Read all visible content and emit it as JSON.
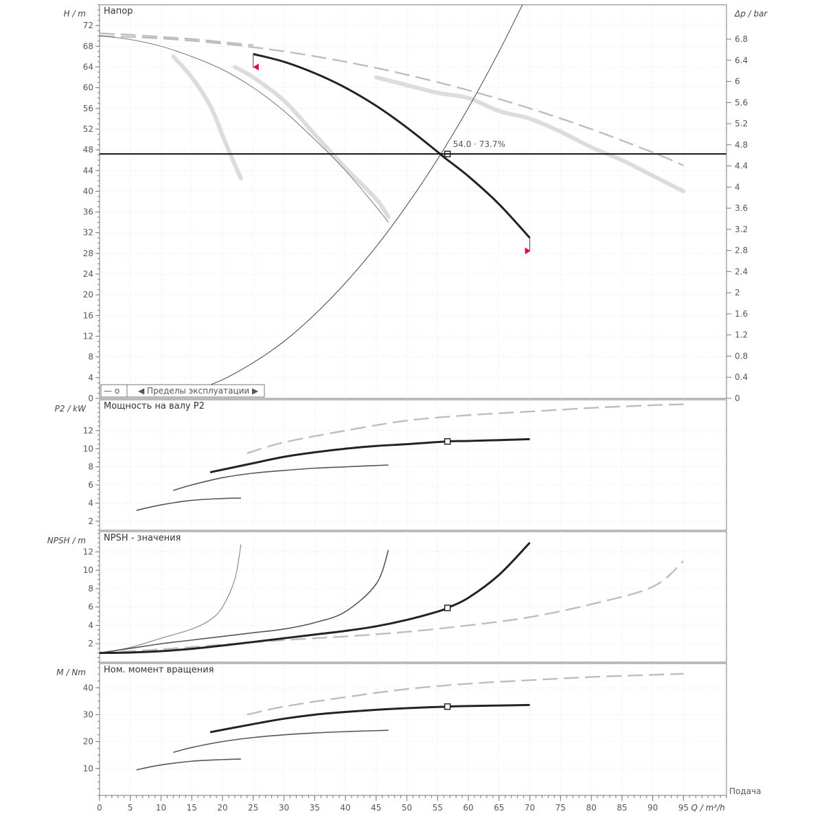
{
  "chart_data": [
    {
      "type": "line",
      "title": "Напор",
      "ylabel": "H / m",
      "y2label": "Δp / bar",
      "xlim": [
        0,
        102
      ],
      "ylim": [
        0,
        76
      ],
      "yticks": [
        0,
        4,
        8,
        12,
        16,
        20,
        24,
        28,
        32,
        36,
        40,
        44,
        48,
        52,
        56,
        60,
        64,
        68,
        72
      ],
      "y2ticks": [
        "0",
        "0.4",
        "0.8",
        "1.2",
        "1.6",
        "2",
        "2.4",
        "2.8",
        "3.2",
        "3.6",
        "4",
        "4.4",
        "4.8",
        "5.2",
        "5.6",
        "6",
        "6.4",
        "6.8"
      ],
      "y2max": 7.45,
      "grid": true,
      "series": [
        {
          "style": "main",
          "x": [
            25,
            30,
            35,
            40,
            45,
            50,
            55,
            56,
            60,
            65,
            70
          ],
          "y": [
            66.5,
            65,
            62.8,
            60,
            56.5,
            52.3,
            47.6,
            46.6,
            42.9,
            37.5,
            31
          ]
        },
        {
          "style": "dash",
          "x": [
            0,
            10,
            20,
            30,
            40,
            50,
            60,
            70,
            80,
            90,
            95
          ],
          "y": [
            70,
            69.5,
            68.5,
            67,
            65,
            62.5,
            59.5,
            56,
            52,
            47.5,
            45
          ]
        },
        {
          "style": "dash",
          "x": [
            0,
            5,
            10,
            15,
            20,
            25
          ],
          "y": [
            70.5,
            70.2,
            69.8,
            69.4,
            68.8,
            68.2
          ]
        },
        {
          "style": "thin",
          "x": [
            0,
            5,
            10,
            15,
            20,
            25,
            30,
            35,
            40,
            45,
            47
          ],
          "y": [
            70,
            69.3,
            68,
            66,
            63.5,
            60,
            55.5,
            50,
            44,
            37,
            34
          ]
        },
        {
          "style": "band",
          "x": [
            12,
            15,
            18,
            20,
            21.5,
            23
          ],
          "y": [
            66,
            62,
            56.5,
            50.8,
            46.5,
            42.5
          ]
        },
        {
          "style": "band",
          "x": [
            22,
            25,
            30,
            35,
            40,
            45,
            47
          ],
          "y": [
            64,
            62,
            57.5,
            51,
            44.5,
            38.5,
            35
          ]
        },
        {
          "style": "band",
          "x": [
            45,
            50,
            55,
            60,
            65,
            70,
            75,
            80,
            85,
            90,
            95
          ],
          "y": [
            62,
            60.5,
            59,
            58,
            55.5,
            54,
            51.5,
            48.5,
            46,
            43,
            40
          ]
        },
        {
          "style": "sys",
          "x": [
            13,
            15,
            20,
            25,
            30,
            35,
            40,
            45,
            50,
            55,
            60,
            65,
            70
          ],
          "y": [
            0.5,
            1.3,
            3.6,
            6.9,
            11,
            16.2,
            22.3,
            29.3,
            37.3,
            46.2,
            56.1,
            67,
            78.9
          ]
        }
      ],
      "operating_point": {
        "x": 56.6,
        "y": 47.2,
        "label": "54.0 · 73.7%"
      },
      "reference_line_y": 47.2,
      "legend": {
        "items": [
          "— o",
          "◀ Пределы эксплуатации ▶"
        ],
        "position": "bottom-left"
      }
    },
    {
      "type": "line",
      "title": "Мощность на валу P2",
      "ylabel": "P2 / kW",
      "xlim": [
        0,
        102
      ],
      "ylim": [
        1,
        15.4
      ],
      "yticks": [
        2,
        4,
        6,
        8,
        10,
        12
      ],
      "grid": true,
      "series": [
        {
          "style": "main",
          "x": [
            18,
            25,
            30,
            35,
            40,
            45,
            50,
            56.6,
            60,
            65,
            70
          ],
          "y": [
            7.4,
            8.4,
            9.1,
            9.6,
            10.0,
            10.3,
            10.5,
            10.8,
            10.85,
            10.95,
            11.05
          ]
        },
        {
          "style": "dash",
          "x": [
            24,
            30,
            40,
            50,
            60,
            70,
            80,
            90,
            95
          ],
          "y": [
            9.5,
            10.7,
            12.0,
            13.1,
            13.7,
            14.1,
            14.5,
            14.8,
            14.9
          ]
        },
        {
          "style": "med",
          "x": [
            12,
            15,
            20,
            25,
            30,
            35,
            40,
            47
          ],
          "y": [
            5.4,
            6.0,
            6.8,
            7.3,
            7.6,
            7.85,
            8.0,
            8.2
          ]
        },
        {
          "style": "med",
          "x": [
            6,
            10,
            15,
            20,
            23
          ],
          "y": [
            3.2,
            3.8,
            4.3,
            4.5,
            4.55
          ]
        }
      ],
      "operating_point": {
        "x": 56.6,
        "y": 10.8
      }
    },
    {
      "type": "line",
      "title": "NPSH - значения",
      "ylabel": "NPSH / m",
      "xlim": [
        0,
        102
      ],
      "ylim": [
        0,
        14.2
      ],
      "yticks": [
        2,
        4,
        6,
        8,
        10,
        12
      ],
      "grid": true,
      "series": [
        {
          "style": "main",
          "x": [
            0,
            5,
            10,
            15,
            20,
            25,
            30,
            35,
            40,
            45,
            50,
            55,
            56.6,
            60,
            65,
            70
          ],
          "y": [
            1.0,
            1.05,
            1.2,
            1.45,
            1.8,
            2.2,
            2.6,
            3.0,
            3.4,
            3.9,
            4.6,
            5.5,
            5.9,
            7.0,
            9.5,
            13.0
          ]
        },
        {
          "style": "dash",
          "x": [
            0,
            10,
            20,
            30,
            40,
            50,
            60,
            70,
            80,
            90,
            95
          ],
          "y": [
            1.0,
            1.4,
            1.9,
            2.4,
            2.8,
            3.3,
            4.0,
            4.9,
            6.3,
            8.2,
            11.0
          ]
        },
        {
          "style": "med",
          "x": [
            0,
            5,
            10,
            15,
            20,
            25,
            30,
            35,
            40,
            45,
            47
          ],
          "y": [
            1.0,
            1.5,
            2.0,
            2.4,
            2.8,
            3.2,
            3.6,
            4.3,
            5.5,
            8.5,
            12.2
          ]
        },
        {
          "style": "thin",
          "x": [
            0,
            5,
            10,
            15,
            18,
            20,
            22,
            23
          ],
          "y": [
            1.0,
            1.6,
            2.6,
            3.6,
            4.6,
            6.0,
            9.0,
            12.8
          ]
        }
      ],
      "operating_point": {
        "x": 56.6,
        "y": 5.9
      }
    },
    {
      "type": "line",
      "title": "Ном. момент вращения",
      "ylabel": "M / Nm",
      "xlim": [
        0,
        102
      ],
      "ylim": [
        0,
        49
      ],
      "yticks": [
        10,
        20,
        30,
        40
      ],
      "grid": true,
      "series": [
        {
          "style": "main",
          "x": [
            18,
            25,
            30,
            35,
            40,
            45,
            50,
            56.6,
            60,
            65,
            70
          ],
          "y": [
            23.5,
            26.5,
            28.5,
            30.0,
            31.0,
            31.8,
            32.4,
            33.0,
            33.2,
            33.4,
            33.6
          ]
        },
        {
          "style": "dash",
          "x": [
            24,
            30,
            40,
            50,
            60,
            70,
            80,
            90,
            95
          ],
          "y": [
            30,
            33,
            36.5,
            39.5,
            41.5,
            42.8,
            44.0,
            44.8,
            45.2
          ]
        },
        {
          "style": "med",
          "x": [
            12,
            15,
            20,
            25,
            30,
            35,
            40,
            47
          ],
          "y": [
            16.0,
            17.8,
            20.0,
            21.5,
            22.5,
            23.2,
            23.7,
            24.2
          ]
        },
        {
          "style": "med",
          "x": [
            6,
            10,
            15,
            20,
            23
          ],
          "y": [
            9.5,
            11.3,
            12.7,
            13.3,
            13.5
          ]
        }
      ],
      "operating_point": {
        "x": 56.6,
        "y": 33.0
      }
    }
  ],
  "x_axis": {
    "ticks": [
      0,
      5,
      10,
      15,
      20,
      25,
      30,
      35,
      40,
      45,
      50,
      55,
      60,
      65,
      70,
      75,
      80,
      85,
      90,
      95
    ],
    "label": "Q / m³/h",
    "right_label": "Подача"
  },
  "colors": {
    "main": "#222222",
    "dash": "#bdbdbd",
    "band": "#dcdcdc",
    "thin": "#777777",
    "med": "#555555",
    "sys": "#444444",
    "marker": "#e0004d"
  }
}
